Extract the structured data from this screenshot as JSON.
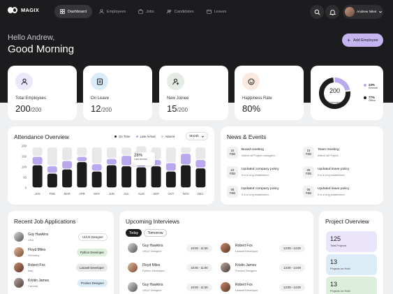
{
  "app": {
    "name": "MAGIX"
  },
  "nav": {
    "items": [
      {
        "label": "Dashboard",
        "icon": "grid-icon",
        "active": true
      },
      {
        "label": "Employees",
        "icon": "user-icon",
        "active": false
      },
      {
        "label": "Jobs",
        "icon": "briefcase-icon",
        "active": false
      },
      {
        "label": "Candidates",
        "icon": "users-icon",
        "active": false
      },
      {
        "label": "Leaves",
        "icon": "calendar-icon",
        "active": false
      }
    ],
    "user_name": "Andrew Niles"
  },
  "greeting": {
    "hello": "Hello Andrew,",
    "title": "Good Morning"
  },
  "add_employee_label": "Add Employee",
  "stats": [
    {
      "label": "Total Employees",
      "value": "200",
      "suffix": "/200",
      "icon": "user-icon"
    },
    {
      "label": "On Leave",
      "value": "12",
      "suffix": "/200",
      "icon": "document-icon"
    },
    {
      "label": "New Joinee",
      "value": "15",
      "suffix": "/200",
      "icon": "user-plus-icon"
    },
    {
      "label": "Happiness Rate",
      "value": "80%",
      "suffix": "",
      "icon": "smile-icon"
    }
  ],
  "workplace": {
    "center_value": "200",
    "center_label": "Employees",
    "remote": {
      "pct": "23%",
      "label": "Remote",
      "fraction": 0.23,
      "color": "#b9a8ee"
    },
    "office": {
      "pct": "77%",
      "label": "Office",
      "fraction": 0.77,
      "color": "#1c1c1e"
    }
  },
  "attendance": {
    "title": "Attendance Overview",
    "legend": [
      "On Time",
      "Late Arrival",
      "Absent"
    ],
    "period": "Month",
    "tooltip": {
      "value": "28%",
      "label": "Late Arrives"
    }
  },
  "chart_data": {
    "type": "bar",
    "stacked": true,
    "categories": [
      "JAN",
      "FEB",
      "MAR",
      "APR",
      "MAY",
      "JUN",
      "JUL",
      "AUG",
      "SEP",
      "OCT",
      "NOV",
      "DEC"
    ],
    "ylim": [
      0,
      200
    ],
    "yticks": [
      0,
      50,
      100,
      150,
      200
    ],
    "series": [
      {
        "name": "On Time",
        "color": "#1c1c1e",
        "values": [
          110,
          70,
          90,
          125,
          80,
          110,
          105,
          100,
          105,
          80,
          110,
          95
        ]
      },
      {
        "name": "Late Arrival",
        "color": "#b9a8ee",
        "values": [
          40,
          35,
          40,
          25,
          35,
          30,
          50,
          40,
          30,
          40,
          55,
          40
        ]
      },
      {
        "name": "Absent",
        "color": "#e8e8ea",
        "values": [
          45,
          90,
          65,
          45,
          80,
          55,
          40,
          60,
          60,
          75,
          30,
          60
        ]
      }
    ]
  },
  "news": {
    "title": "News & Events",
    "items": [
      {
        "day": "15",
        "month": "FEB",
        "title": "Board meeting",
        "desc": "Attend all Project managem..."
      },
      {
        "day": "15",
        "month": "FEB",
        "title": "Team meeting",
        "desc": "Attend all Project..."
      },
      {
        "day": "10",
        "month": "FEB",
        "title": "Updated company policy",
        "desc": "It is a long established..."
      },
      {
        "day": "09",
        "month": "FEB",
        "title": "Updated leave policy",
        "desc": "It is a long established..."
      },
      {
        "day": "08",
        "month": "FEB",
        "title": "Updated company policy",
        "desc": "It is a long established..."
      },
      {
        "day": "08",
        "month": "FEB",
        "title": "Updated leave policy",
        "desc": "It is a long established..."
      }
    ]
  },
  "jobs": {
    "title": "Recent Job Applications",
    "items": [
      {
        "name": "Guy Hawkins",
        "country": "USA",
        "role": "UI/UX Designer",
        "tag_color": "#ffffff",
        "tag_border": "#dddddd"
      },
      {
        "name": "Floyd Miles",
        "country": "Germany",
        "role": "Python Developer",
        "tag_color": "#dcefdc",
        "tag_border": "#dcefdc"
      },
      {
        "name": "Robert Fox",
        "country": "Italy",
        "role": "Laravel Developer",
        "tag_color": "#e7e7e9",
        "tag_border": "#e7e7e9"
      },
      {
        "name": "Kristin James",
        "country": "Canada",
        "role": "Product Designer",
        "tag_color": "#dcecf6",
        "tag_border": "#dcecf6"
      }
    ]
  },
  "interviews": {
    "title": "Upcoming Interviews",
    "tabs": [
      "Today",
      "Tomorrow"
    ],
    "left": [
      {
        "name": "Guy Hawkins",
        "role": "UI/UX Designer",
        "time": "10:00 - 11:00"
      },
      {
        "name": "Floyd Miles",
        "role": "Python Developer",
        "time": "10:00 - 11:00"
      },
      {
        "name": "Guy Hawkins",
        "role": "UI/UX Designer",
        "time": "10:00 - 11:00"
      }
    ],
    "right": [
      {
        "name": "Robert Fox",
        "role": "Laravel Developer",
        "time": "13:00 - 14:00"
      },
      {
        "name": "Kristin James",
        "role": "Product Designer",
        "time": "13:00 - 14:00"
      },
      {
        "name": "Robert Fox",
        "role": "Laravel Developer",
        "time": "13:00 - 14:00"
      }
    ]
  },
  "projects": {
    "title": "Project Overview",
    "items": [
      {
        "value": "125",
        "label": "Total Projects",
        "color": "#ebe5fb"
      },
      {
        "value": "13",
        "label": "Projects on Hold",
        "color": "#dcecf6"
      },
      {
        "value": "13",
        "label": "Projects on Hold",
        "color": "#dcefdc"
      }
    ]
  }
}
